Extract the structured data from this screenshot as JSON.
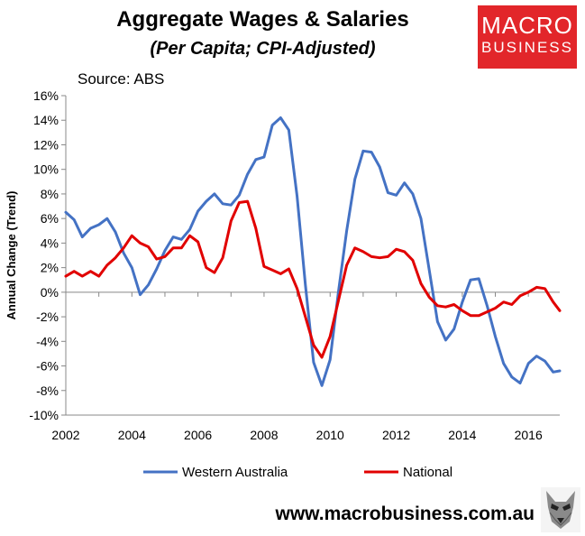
{
  "header": {
    "title": "Aggregate Wages & Salaries",
    "subtitle": "(Per Capita; CPI-Adjusted)",
    "source": "Source: ABS"
  },
  "logo": {
    "line1": "MACRO",
    "line2": "BUSINESS",
    "color": "#e2262a"
  },
  "footer": {
    "website": "www.macrobusiness.com.au",
    "icon": "wolf-icon"
  },
  "chart_data": {
    "type": "line",
    "ylabel": "Annual Change (Trend)",
    "xlim": [
      2002,
      2016.95
    ],
    "ylim": [
      -10,
      16
    ],
    "y_ticks": [
      -10,
      -8,
      -6,
      -4,
      -2,
      0,
      2,
      4,
      6,
      8,
      10,
      12,
      14,
      16
    ],
    "y_tick_labels": [
      "-10%",
      "-8%",
      "-6%",
      "-4%",
      "-2%",
      "0%",
      "2%",
      "4%",
      "6%",
      "8%",
      "10%",
      "12%",
      "14%",
      "16%"
    ],
    "x_ticks": [
      2002,
      2004,
      2006,
      2008,
      2010,
      2012,
      2014,
      2016
    ],
    "x_tick_labels": [
      "2002",
      "2004",
      "2006",
      "2008",
      "2010",
      "2012",
      "2014",
      "2016"
    ],
    "grid": false,
    "legend_position": "bottom",
    "x": [
      2002.0,
      2002.25,
      2002.5,
      2002.75,
      2003.0,
      2003.25,
      2003.5,
      2003.75,
      2004.0,
      2004.25,
      2004.5,
      2004.75,
      2005.0,
      2005.25,
      2005.5,
      2005.75,
      2006.0,
      2006.25,
      2006.5,
      2006.75,
      2007.0,
      2007.25,
      2007.5,
      2007.75,
      2008.0,
      2008.25,
      2008.5,
      2008.75,
      2009.0,
      2009.25,
      2009.5,
      2009.75,
      2010.0,
      2010.25,
      2010.5,
      2010.75,
      2011.0,
      2011.25,
      2011.5,
      2011.75,
      2012.0,
      2012.25,
      2012.5,
      2012.75,
      2013.0,
      2013.25,
      2013.5,
      2013.75,
      2014.0,
      2014.25,
      2014.5,
      2014.75,
      2015.0,
      2015.25,
      2015.5,
      2015.75,
      2016.0,
      2016.25,
      2016.5,
      2016.75,
      2016.95
    ],
    "series": [
      {
        "name": "Western Australia",
        "color": "#4472c4",
        "values": [
          6.5,
          5.9,
          4.5,
          5.2,
          5.5,
          6.0,
          4.9,
          3.2,
          2.0,
          -0.2,
          0.6,
          1.9,
          3.4,
          4.5,
          4.3,
          5.1,
          6.6,
          7.4,
          8.0,
          7.2,
          7.1,
          7.9,
          9.6,
          10.8,
          11.0,
          13.6,
          14.2,
          13.2,
          7.8,
          0.6,
          -5.7,
          -7.6,
          -5.5,
          0.0,
          5.0,
          9.2,
          11.5,
          11.4,
          10.2,
          8.1,
          7.9,
          8.9,
          8.0,
          6.0,
          1.8,
          -2.4,
          -3.9,
          -3.0,
          -0.8,
          1.0,
          1.1,
          -1.1,
          -3.6,
          -5.8,
          -6.9,
          -7.4,
          -5.8,
          -5.2,
          -5.6,
          -6.5,
          -6.4
        ]
      },
      {
        "name": "National",
        "color": "#e10000",
        "values": [
          1.3,
          1.7,
          1.3,
          1.7,
          1.3,
          2.2,
          2.8,
          3.6,
          4.6,
          4.0,
          3.7,
          2.7,
          2.9,
          3.6,
          3.6,
          4.6,
          4.1,
          2.0,
          1.6,
          2.8,
          5.8,
          7.3,
          7.4,
          5.2,
          2.1,
          1.8,
          1.5,
          1.9,
          0.3,
          -2.0,
          -4.3,
          -5.3,
          -3.6,
          -0.7,
          2.2,
          3.6,
          3.3,
          2.9,
          2.8,
          2.9,
          3.5,
          3.3,
          2.6,
          0.7,
          -0.4,
          -1.1,
          -1.2,
          -1.0,
          -1.5,
          -1.9,
          -1.9,
          -1.6,
          -1.3,
          -0.8,
          -1.0,
          -0.3,
          0.0,
          0.4,
          0.3,
          -0.8,
          -1.5
        ]
      }
    ]
  }
}
